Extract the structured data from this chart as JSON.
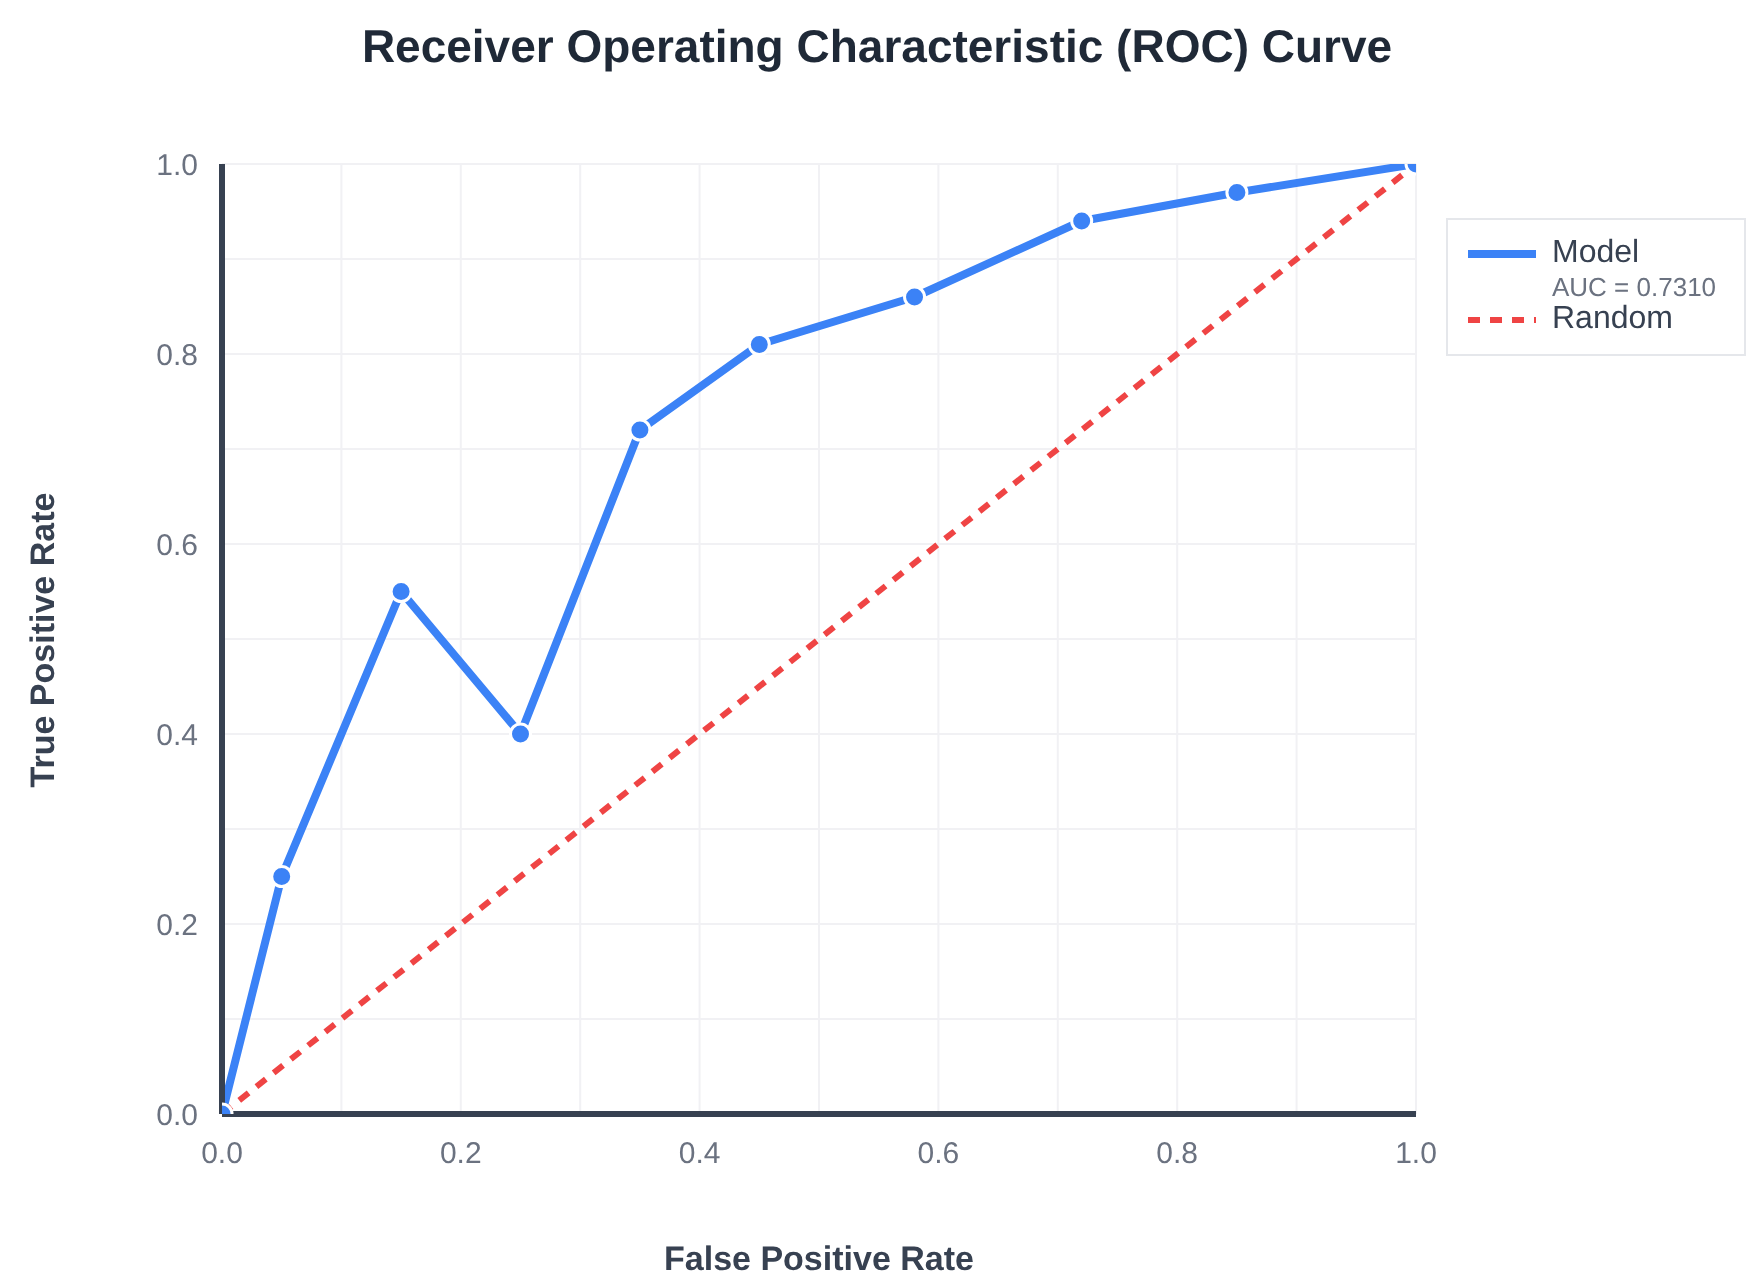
{
  "chart_data": {
    "type": "line",
    "title": "Receiver Operating Characteristic (ROC) Curve",
    "xlabel": "False Positive Rate",
    "ylabel": "True Positive Rate",
    "series": [
      {
        "name": "Model",
        "color": "#3b82f6",
        "x": [
          0,
          0.05,
          0.15,
          0.25,
          0.35,
          0.45,
          0.58,
          0.72,
          0.85,
          1.0
        ],
        "values": [
          0,
          0.25,
          0.55,
          0.4,
          0.72,
          0.81,
          0.86,
          0.94,
          0.97,
          1.0
        ],
        "marker": "circle",
        "line_style": "solid"
      },
      {
        "name": "Random",
        "color": "#ef4444",
        "x": [
          0,
          1
        ],
        "values": [
          0,
          1
        ],
        "marker": "none",
        "line_style": "dashed"
      }
    ],
    "annotations": [
      "AUC = 0.7310"
    ],
    "xlim": [
      0,
      1.0
    ],
    "ylim": [
      0,
      1.0
    ],
    "xticks": [
      {
        "value": 0,
        "label": "0.0"
      },
      {
        "value": 0.1,
        "label": null
      },
      0.2,
      {
        "value": 0.3,
        "label": null
      },
      0.4,
      {
        "value": 0.5,
        "label": null
      },
      0.6,
      {
        "value": 0.7,
        "label": null
      },
      0.8,
      {
        "value": 0.9,
        "label": null
      },
      {
        "value": 1,
        "label": "1.0"
      }
    ],
    "yticks": [
      {
        "value": 0,
        "label": "0.0"
      },
      {
        "value": 0.1,
        "label": null
      },
      0.2,
      {
        "value": 0.3,
        "label": null
      },
      0.4,
      {
        "value": 0.5,
        "label": null
      },
      0.6,
      {
        "value": 0.7,
        "label": null
      },
      0.8,
      {
        "value": 0.9,
        "label": null
      },
      {
        "value": 1,
        "label": "1.0"
      }
    ],
    "grid": true,
    "legend": "top right"
  }
}
